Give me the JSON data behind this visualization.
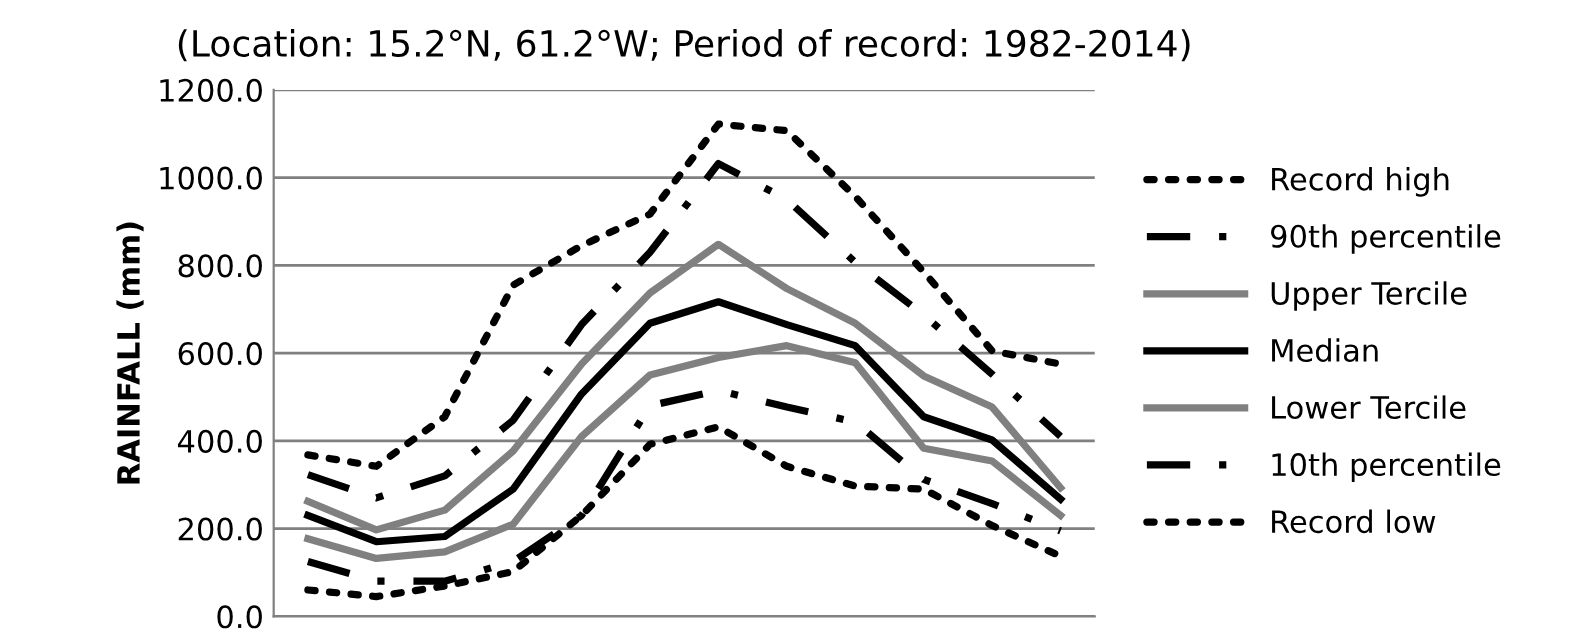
{
  "chart_data": {
    "type": "line",
    "title": "(Location: 15.2°N, 61.2°W; Period of record: 1982-2014)",
    "ylabel": "RAINFALL (mm)",
    "categories": [
      null,
      null,
      null,
      null,
      null,
      null,
      null,
      null,
      null,
      null,
      null,
      null
    ],
    "series": [
      {
        "name": "Record high",
        "color": "#000000",
        "line_style": "dotted",
        "values": [
          368,
          342,
          455,
          755,
          845,
          917,
          1122,
          1107,
          957,
          785,
          605,
          575
        ]
      },
      {
        "name": "90th percentile",
        "color": "#000000",
        "line_style": "dashdot",
        "values": [
          323,
          270,
          320,
          447,
          665,
          830,
          1032,
          950,
          807,
          687,
          552,
          410
        ]
      },
      {
        "name": "Upper Tercile",
        "color": "#808080",
        "line_style": "solid",
        "values": [
          262,
          197,
          242,
          377,
          575,
          737,
          848,
          747,
          668,
          548,
          477,
          293
        ]
      },
      {
        "name": "Median",
        "color": "#000000",
        "line_style": "solid",
        "values": [
          230,
          170,
          182,
          290,
          507,
          668,
          717,
          665,
          617,
          455,
          402,
          267
        ]
      },
      {
        "name": "Lower Tercile",
        "color": "#808080",
        "line_style": "solid",
        "values": [
          177,
          132,
          147,
          210,
          410,
          550,
          590,
          617,
          578,
          383,
          354,
          230
        ]
      },
      {
        "name": "10th percentile",
        "color": "#000000",
        "line_style": "dashdot",
        "values": [
          125,
          80,
          80,
          125,
          230,
          480,
          515,
          477,
          443,
          312,
          257,
          195
        ]
      },
      {
        "name": "Record low",
        "color": "#000000",
        "line_style": "dotted",
        "values": [
          60,
          45,
          69,
          102,
          230,
          392,
          432,
          342,
          297,
          290,
          207,
          137
        ]
      }
    ],
    "ylim": [
      0,
      1200
    ],
    "yticks": [
      {
        "value": 0,
        "label": "0.0"
      },
      {
        "value": 200,
        "label": "200.0"
      },
      {
        "value": 400,
        "label": "400.0"
      },
      {
        "value": 600,
        "label": "600.0"
      },
      {
        "value": 800,
        "label": "800.0"
      },
      {
        "value": 1000,
        "label": "1000.0"
      },
      {
        "value": 1200,
        "label": "1200.0"
      }
    ],
    "grid": "y",
    "legend": "right",
    "marker": "none"
  }
}
